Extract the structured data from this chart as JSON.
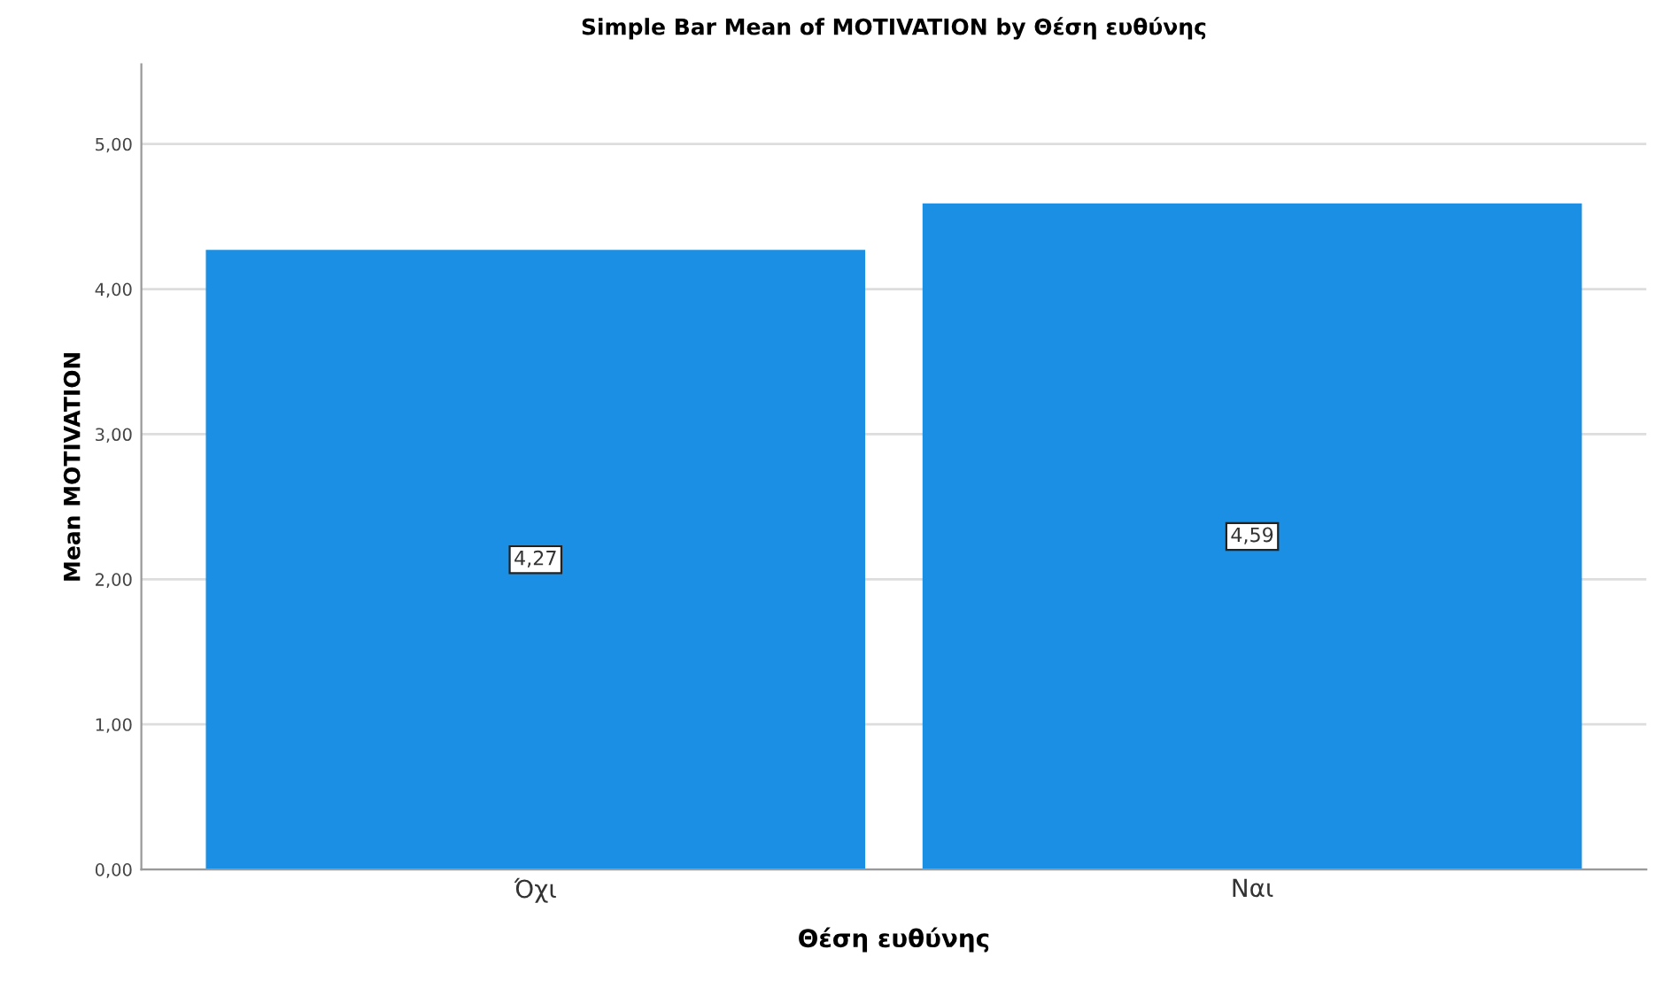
{
  "chart_data": {
    "type": "bar",
    "title": "Simple Bar Mean of MOTIVATION by Θέση ευθύνης",
    "xlabel": "Θέση ευθύνης",
    "ylabel": "Mean MOTIVATION",
    "categories": [
      "Όχι",
      "Ναι"
    ],
    "values": [
      4.27,
      4.59
    ],
    "value_labels": [
      "4,27",
      "4,59"
    ],
    "color": "#1a8fe3",
    "ylim": [
      0,
      5.55
    ],
    "yticks": [
      {
        "value": 0,
        "label": "0,00"
      },
      {
        "value": 1,
        "label": "1,00"
      },
      {
        "value": 2,
        "label": "2,00"
      },
      {
        "value": 3,
        "label": "3,00"
      },
      {
        "value": 4,
        "label": "4,00"
      },
      {
        "value": 5,
        "label": "5,00"
      }
    ],
    "grid": "y",
    "legend": false
  }
}
